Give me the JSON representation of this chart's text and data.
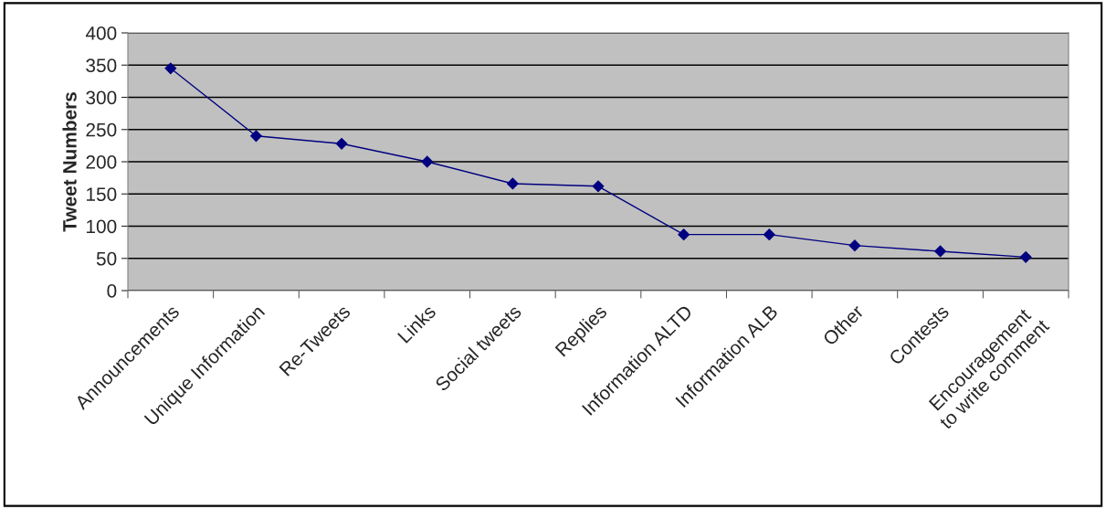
{
  "chart_data": {
    "type": "line",
    "ylabel": "Tweet Numbers",
    "categories": [
      "Announcements",
      "Unique Information",
      "Re-Tweets",
      "Links",
      "Social tweets",
      "Replies",
      "Information ALTD",
      "Information ALB",
      "Other",
      "Contests",
      "Encouragement\nto write comment"
    ],
    "series": [
      {
        "color": "#000080",
        "values": [
          345,
          240,
          228,
          200,
          166,
          162,
          87,
          87,
          70,
          61,
          52
        ]
      }
    ],
    "ylim": [
      0,
      400
    ],
    "yticks": [
      0,
      50,
      100,
      150,
      200,
      250,
      300,
      350,
      400
    ],
    "grid": "y",
    "marker": "diamond",
    "line_style": "solid",
    "legend": false
  }
}
